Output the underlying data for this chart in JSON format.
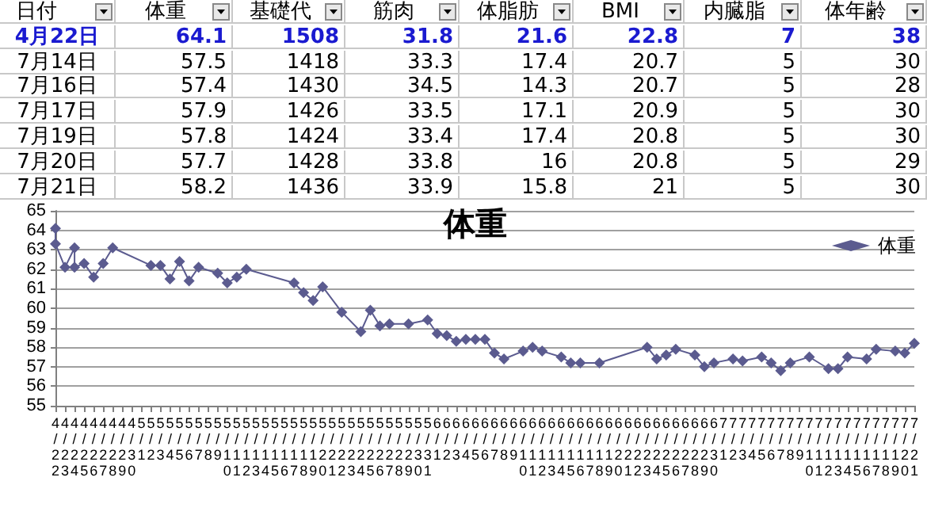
{
  "chart_data": {
    "type": "line",
    "title": "体重",
    "annotations": [
      "日付",
      "体重",
      "基礎代",
      "筋肉",
      "体脂肪",
      "BMI",
      "内臓脂",
      "体年齢",
      "4月22日",
      "64.1",
      "1508",
      "31.8",
      "21.6",
      "22.8",
      "7",
      "38",
      "7月14日",
      "57.5",
      "1418",
      "33.3",
      "17.4",
      "20.7",
      "5",
      "30",
      "7月16日",
      "57.4",
      "1430",
      "34.5",
      "14.3",
      "20.7",
      "5",
      "28",
      "7月17日",
      "57.9",
      "1426",
      "33.5",
      "17.1",
      "20.9",
      "5",
      "30",
      "7月19日",
      "57.8",
      "1424",
      "33.4",
      "17.4",
      "20.8",
      "5",
      "30",
      "7月20日",
      "57.7",
      "1428",
      "33.8",
      "16",
      "20.8",
      "5",
      "29",
      "7月21日",
      "58.2",
      "1436",
      "33.9",
      "15.8",
      "21",
      "5",
      "30"
    ],
    "x": [
      "--04-22",
      "--04-22",
      "--04-23",
      "--04-24",
      "--04-24",
      "--04-25",
      "--04-26",
      "--04-27",
      "--04-28",
      "--05-02",
      "--05-03",
      "--05-04",
      "--05-05",
      "--05-06",
      "--05-07",
      "--05-09",
      "--05-10",
      "--05-11",
      "--05-12",
      "--05-17",
      "--05-18",
      "--05-19",
      "--05-20",
      "--05-22",
      "--05-24",
      "--05-25",
      "--05-26",
      "--05-27",
      "--05-29",
      "--05-31",
      "--06-01",
      "--06-02",
      "--06-03",
      "--06-04",
      "--06-05",
      "--06-06",
      "--06-07",
      "--06-08",
      "--06-10",
      "--06-11",
      "--06-12",
      "--06-14",
      "--06-15",
      "--06-16",
      "--06-18",
      "--06-23",
      "--06-24",
      "--06-25",
      "--06-26",
      "--06-28",
      "--06-29",
      "--06-30",
      "--07-02",
      "--07-03",
      "--07-05",
      "--07-06",
      "--07-07",
      "--07-08",
      "--07-10",
      "--07-12",
      "--07-13",
      "--07-14",
      "--07-16",
      "--07-17",
      "--07-19",
      "--07-20",
      "--07-21"
    ],
    "series": [
      {
        "name": "体重",
        "color": "#5b5b8f",
        "values": [
          64.1,
          63.3,
          62.1,
          63.1,
          62.1,
          62.3,
          61.6,
          62.3,
          63.1,
          62.2,
          62.2,
          61.5,
          62.4,
          61.4,
          62.1,
          61.8,
          61.3,
          61.6,
          62.0,
          61.3,
          60.8,
          60.4,
          61.1,
          59.8,
          58.8,
          59.9,
          59.1,
          59.2,
          59.2,
          59.4,
          58.7,
          58.6,
          58.3,
          58.4,
          58.4,
          58.4,
          57.7,
          57.4,
          57.8,
          58.0,
          57.8,
          57.5,
          57.2,
          57.2,
          57.2,
          58.0,
          57.4,
          57.6,
          57.9,
          57.6,
          57.0,
          57.2,
          57.4,
          57.3,
          57.5,
          57.2,
          56.8,
          57.2,
          57.5,
          56.9,
          56.9,
          57.5,
          57.4,
          57.9,
          57.8,
          57.7,
          58.2
        ]
      }
    ],
    "xlim": [
      "--04-22",
      "--07-21"
    ],
    "xticks": [
      {
        "value": "--04-22",
        "label": "4/22"
      },
      {
        "value": "--04-23",
        "label": "4/23"
      },
      {
        "value": "--04-24",
        "label": "4/24"
      },
      {
        "value": "--04-25",
        "label": "4/25"
      },
      {
        "value": "--04-26",
        "label": "4/26"
      },
      {
        "value": "--04-27",
        "label": "4/27"
      },
      {
        "value": "--04-28",
        "label": "4/28"
      },
      {
        "value": "--04-29",
        "label": "4/29"
      },
      {
        "value": "--04-30",
        "label": "4/30"
      },
      {
        "value": "--05-01",
        "label": "5/1"
      },
      {
        "value": "--05-02",
        "label": "5/2"
      },
      {
        "value": "--05-03",
        "label": "5/3"
      },
      {
        "value": "--05-04",
        "label": "5/4"
      },
      {
        "value": "--05-05",
        "label": "5/5"
      },
      {
        "value": "--05-06",
        "label": "5/6"
      },
      {
        "value": "--05-07",
        "label": "5/7"
      },
      {
        "value": "--05-08",
        "label": "5/8"
      },
      {
        "value": "--05-09",
        "label": "5/9"
      },
      {
        "value": "--05-10",
        "label": "5/10"
      },
      {
        "value": "--05-11",
        "label": "5/11"
      },
      {
        "value": "--05-12",
        "label": "5/12"
      },
      {
        "value": "--05-13",
        "label": "5/13"
      },
      {
        "value": "--05-14",
        "label": "5/14"
      },
      {
        "value": "--05-15",
        "label": "5/15"
      },
      {
        "value": "--05-16",
        "label": "5/16"
      },
      {
        "value": "--05-17",
        "label": "5/17"
      },
      {
        "value": "--05-18",
        "label": "5/18"
      },
      {
        "value": "--05-19",
        "label": "5/19"
      },
      {
        "value": "--05-20",
        "label": "5/20"
      },
      {
        "value": "--05-21",
        "label": "5/21"
      },
      {
        "value": "--05-22",
        "label": "5/22"
      },
      {
        "value": "--05-23",
        "label": "5/23"
      },
      {
        "value": "--05-24",
        "label": "5/24"
      },
      {
        "value": "--05-25",
        "label": "5/25"
      },
      {
        "value": "--05-26",
        "label": "5/26"
      },
      {
        "value": "--05-27",
        "label": "5/27"
      },
      {
        "value": "--05-28",
        "label": "5/28"
      },
      {
        "value": "--05-29",
        "label": "5/29"
      },
      {
        "value": "--05-30",
        "label": "5/30"
      },
      {
        "value": "--05-31",
        "label": "5/31"
      },
      {
        "value": "--06-01",
        "label": "6/1"
      },
      {
        "value": "--06-02",
        "label": "6/2"
      },
      {
        "value": "--06-03",
        "label": "6/3"
      },
      {
        "value": "--06-04",
        "label": "6/4"
      },
      {
        "value": "--06-05",
        "label": "6/5"
      },
      {
        "value": "--06-06",
        "label": "6/6"
      },
      {
        "value": "--06-07",
        "label": "6/7"
      },
      {
        "value": "--06-08",
        "label": "6/8"
      },
      {
        "value": "--06-09",
        "label": "6/9"
      },
      {
        "value": "--06-10",
        "label": "6/10"
      },
      {
        "value": "--06-11",
        "label": "6/11"
      },
      {
        "value": "--06-12",
        "label": "6/12"
      },
      {
        "value": "--06-13",
        "label": "6/13"
      },
      {
        "value": "--06-14",
        "label": "6/14"
      },
      {
        "value": "--06-15",
        "label": "6/15"
      },
      {
        "value": "--06-16",
        "label": "6/16"
      },
      {
        "value": "--06-17",
        "label": "6/17"
      },
      {
        "value": "--06-18",
        "label": "6/18"
      },
      {
        "value": "--06-19",
        "label": "6/19"
      },
      {
        "value": "--06-20",
        "label": "6/20"
      },
      {
        "value": "--06-21",
        "label": "6/21"
      },
      {
        "value": "--06-22",
        "label": "6/22"
      },
      {
        "value": "--06-23",
        "label": "6/23"
      },
      {
        "value": "--06-24",
        "label": "6/24"
      },
      {
        "value": "--06-25",
        "label": "6/25"
      },
      {
        "value": "--06-26",
        "label": "6/26"
      },
      {
        "value": "--06-27",
        "label": "6/27"
      },
      {
        "value": "--06-28",
        "label": "6/28"
      },
      {
        "value": "--06-29",
        "label": "6/29"
      },
      {
        "value": "--06-30",
        "label": "6/30"
      },
      {
        "value": "--07-01",
        "label": "7/1"
      },
      {
        "value": "--07-02",
        "label": "7/2"
      },
      {
        "value": "--07-03",
        "label": "7/3"
      },
      {
        "value": "--07-04",
        "label": "7/4"
      },
      {
        "value": "--07-05",
        "label": "7/5"
      },
      {
        "value": "--07-06",
        "label": "7/6"
      },
      {
        "value": "--07-07",
        "label": "7/7"
      },
      {
        "value": "--07-08",
        "label": "7/8"
      },
      {
        "value": "--07-09",
        "label": "7/9"
      },
      {
        "value": "--07-10",
        "label": "7/10"
      },
      {
        "value": "--07-11",
        "label": "7/11"
      },
      {
        "value": "--07-12",
        "label": "7/12"
      },
      {
        "value": "--07-13",
        "label": "7/13"
      },
      {
        "value": "--07-14",
        "label": "7/14"
      },
      {
        "value": "--07-15",
        "label": "7/15"
      },
      {
        "value": "--07-16",
        "label": "7/16"
      },
      {
        "value": "--07-17",
        "label": "7/17"
      },
      {
        "value": "--07-18",
        "label": "7/18"
      },
      {
        "value": "--07-19",
        "label": "7/19"
      },
      {
        "value": "--07-20",
        "label": "7/20"
      },
      {
        "value": "--07-21",
        "label": "7/21"
      }
    ],
    "ylim": [
      55,
      65
    ],
    "yticks": [
      55,
      56,
      57,
      58,
      59,
      60,
      61,
      62,
      63,
      64,
      65
    ],
    "grid": "y",
    "legend": "top right",
    "marker": "diamond"
  }
}
